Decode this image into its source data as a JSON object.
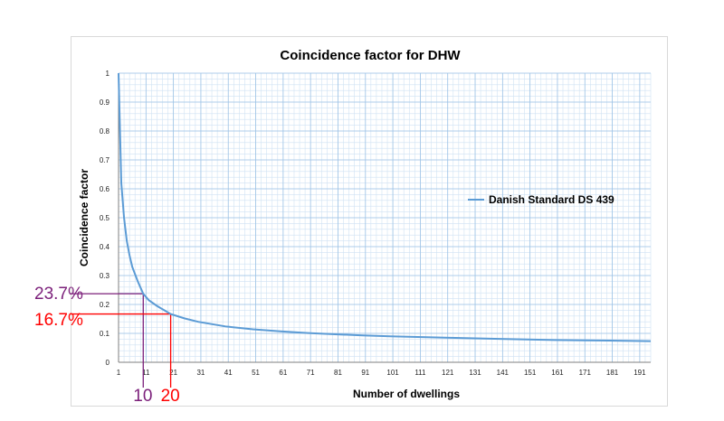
{
  "chart_data": {
    "type": "line",
    "title": "Coincidence factor for DHW",
    "xlabel": "Number of dwellings",
    "ylabel": "Coincidence factor",
    "xlim": [
      1,
      195
    ],
    "ylim": [
      0,
      1
    ],
    "x_ticks": [
      "1",
      "11",
      "21",
      "31",
      "41",
      "51",
      "61",
      "71",
      "81",
      "91",
      "101",
      "111",
      "121",
      "131",
      "141",
      "151",
      "161",
      "171",
      "181",
      "191"
    ],
    "y_ticks": [
      "0",
      "0.1",
      "0.2",
      "0.3",
      "0.4",
      "0.5",
      "0.6",
      "0.7",
      "0.8",
      "0.9",
      "1"
    ],
    "grid": true,
    "legend_position": "right",
    "series": [
      {
        "name": "Danish Standard DS 439",
        "color": "#5b9bd5",
        "x": [
          1,
          2,
          3,
          4,
          5,
          6,
          8,
          10,
          12,
          15,
          20,
          25,
          30,
          40,
          50,
          60,
          70,
          80,
          90,
          100,
          120,
          140,
          160,
          180,
          195
        ],
        "y": [
          1.0,
          0.62,
          0.5,
          0.42,
          0.37,
          0.33,
          0.28,
          0.237,
          0.215,
          0.195,
          0.167,
          0.152,
          0.14,
          0.124,
          0.114,
          0.107,
          0.101,
          0.097,
          0.093,
          0.09,
          0.085,
          0.081,
          0.077,
          0.075,
          0.073
        ]
      }
    ],
    "annotations": [
      {
        "x": 10,
        "y": 0.237,
        "x_label": "10",
        "y_label": "23.7%",
        "color": "#7b1f7a"
      },
      {
        "x": 20,
        "y": 0.167,
        "x_label": "20",
        "y_label": "16.7%",
        "color": "#ff0000"
      }
    ]
  }
}
